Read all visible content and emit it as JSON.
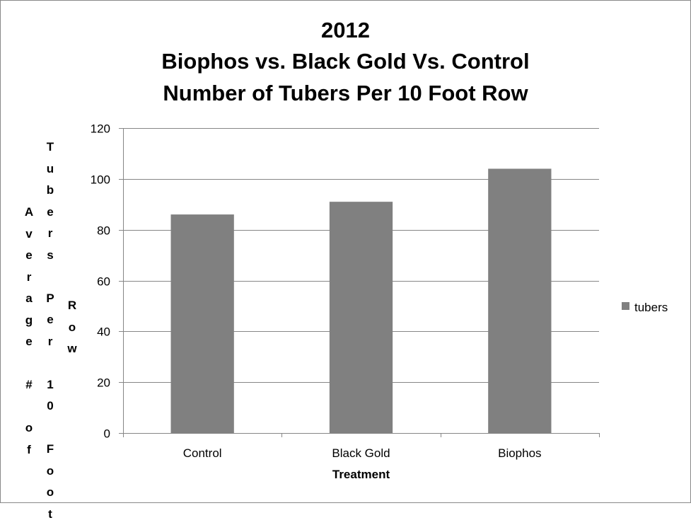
{
  "chart_data": {
    "type": "bar",
    "title": [
      "2012",
      "Biophos vs. Black Gold Vs. Control",
      "Number of Tubers Per 10 Foot Row"
    ],
    "categories": [
      "Control",
      "Black Gold",
      "Biophos"
    ],
    "series": [
      {
        "name": "tubers",
        "values": [
          86,
          91,
          104
        ]
      }
    ],
    "xlabel": "Treatment",
    "ylabel": "Average # of Tubers Per 10 Foot Row",
    "ylim": [
      0,
      120
    ],
    "yticks": [
      "0",
      "20",
      "40",
      "60",
      "80",
      "100",
      "120"
    ],
    "grid": true,
    "legend_position": "right",
    "colors": {
      "bar": "#808080",
      "grid": "#868686",
      "axis": "#868686",
      "frame": "#888888"
    }
  }
}
